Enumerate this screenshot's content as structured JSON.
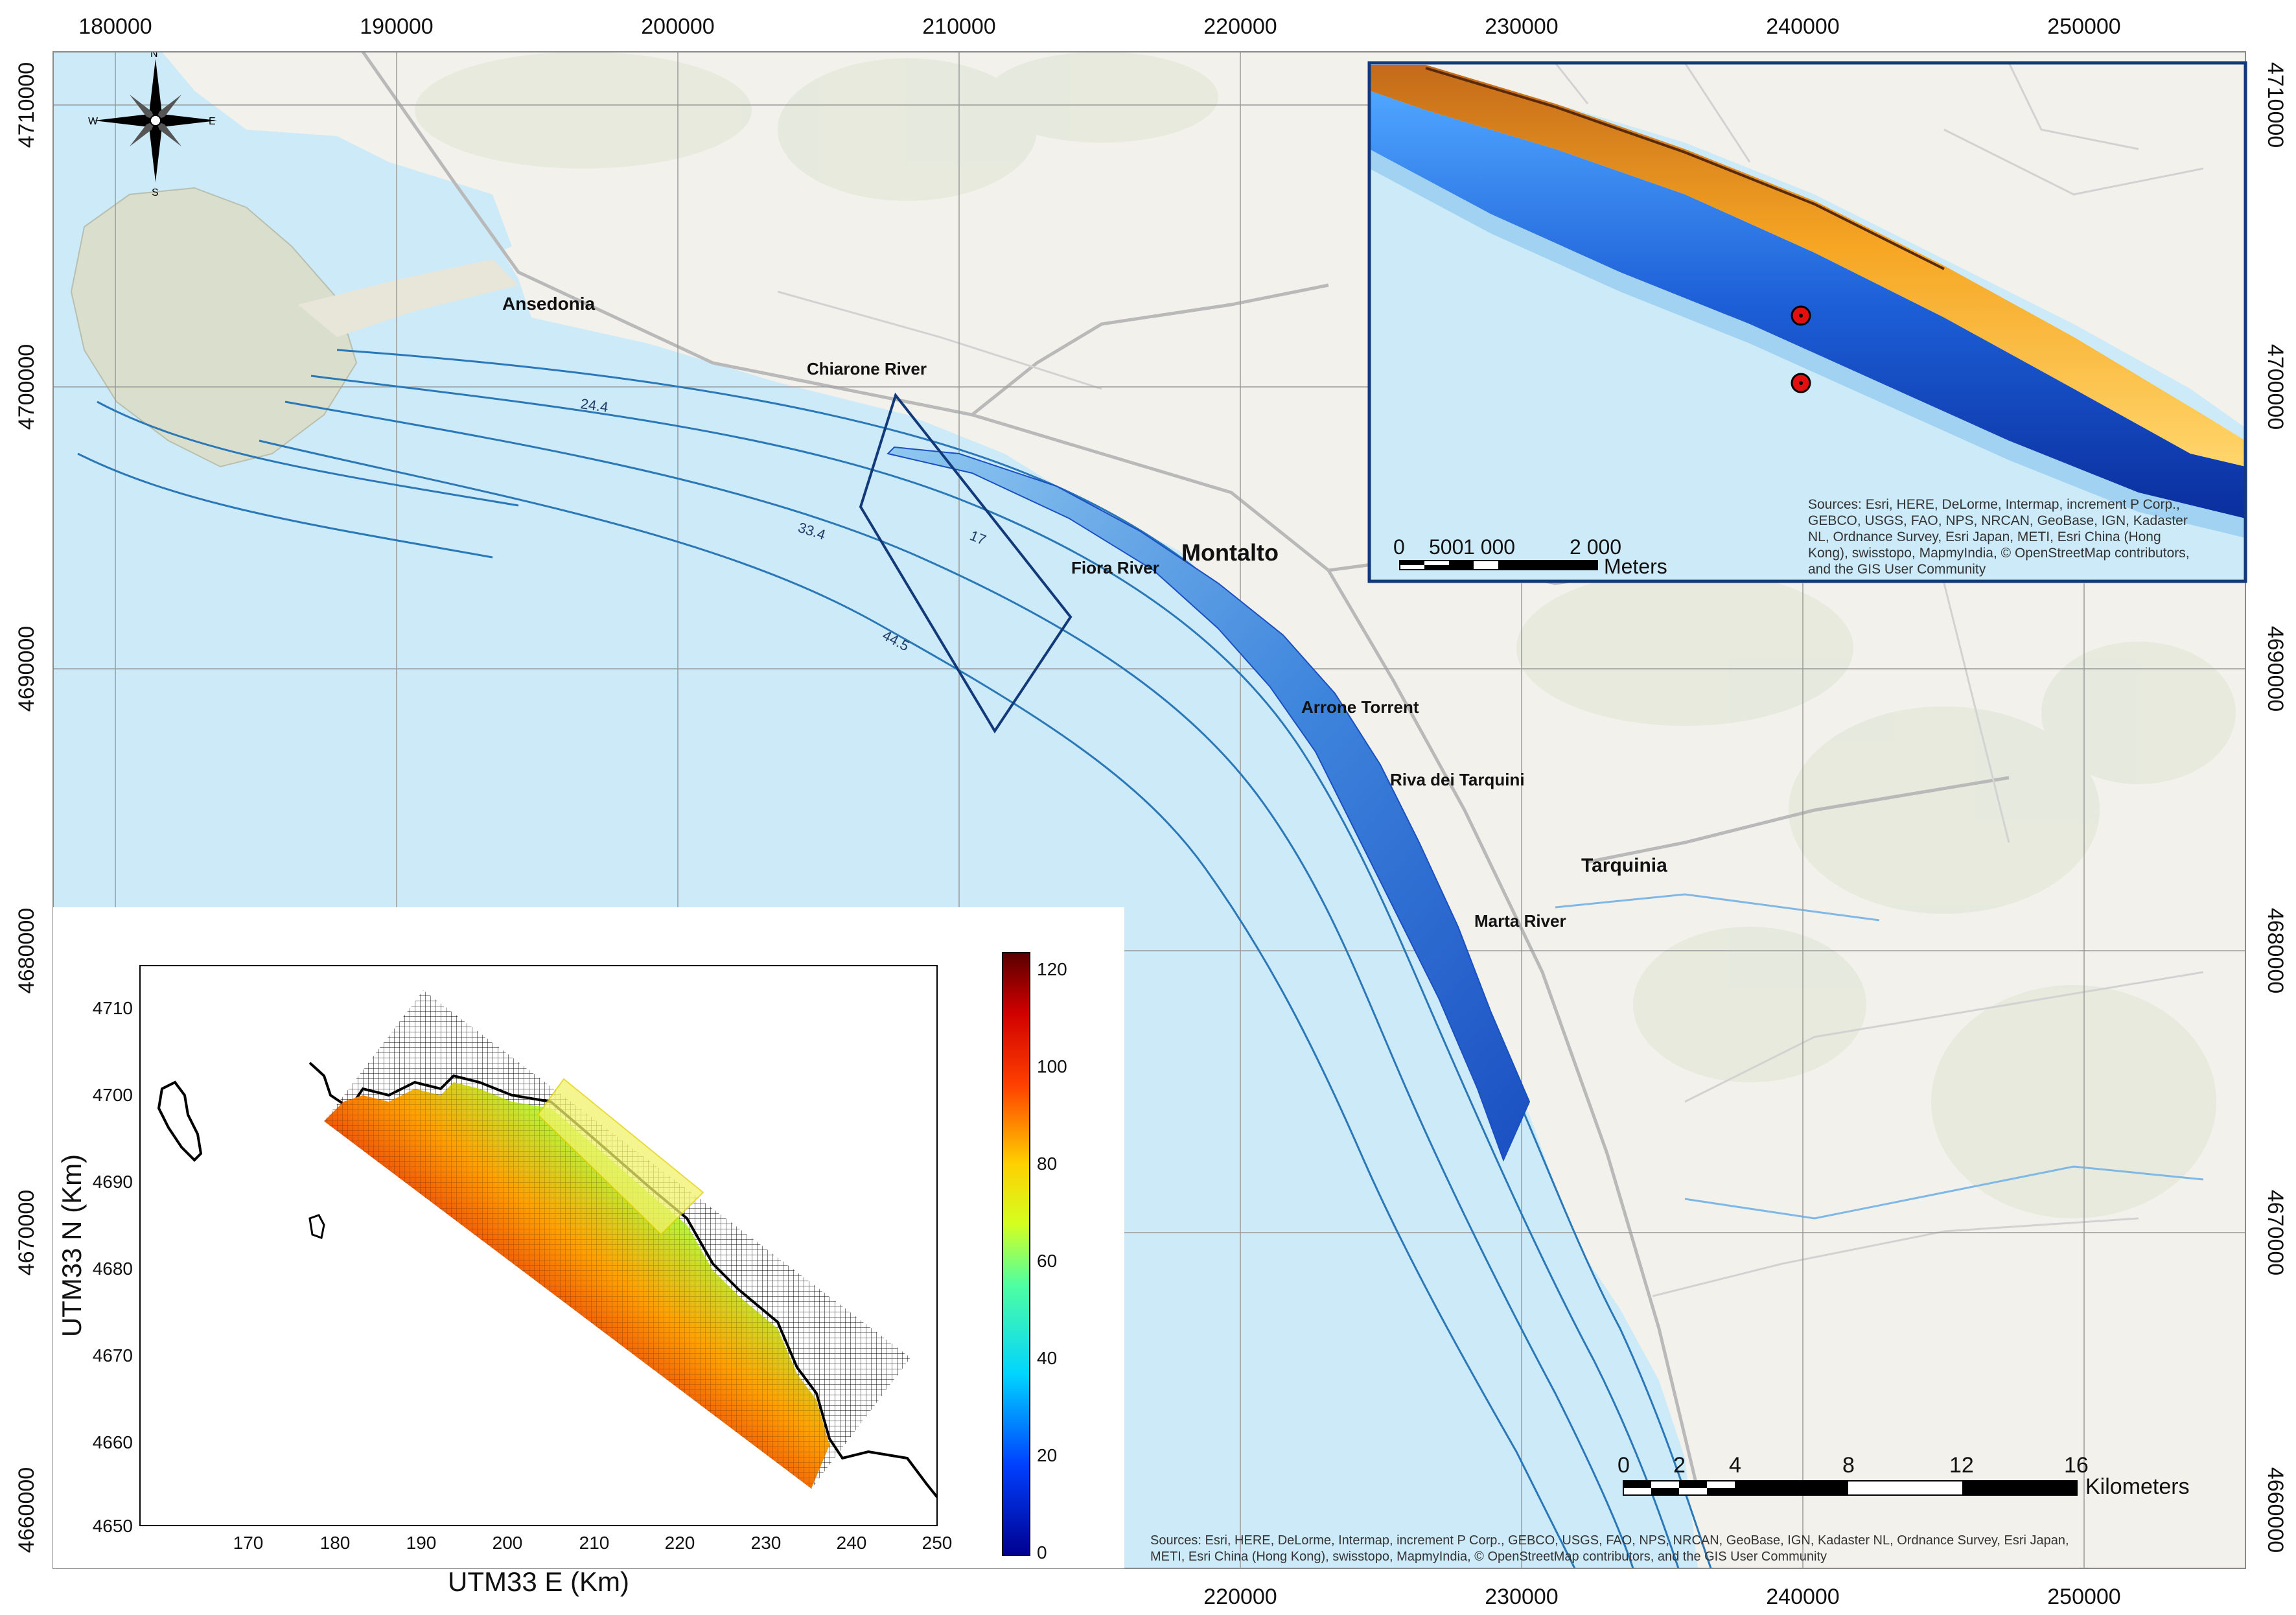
{
  "main_map": {
    "x_ticks": [
      "180000",
      "190000",
      "200000",
      "210000",
      "220000",
      "230000",
      "240000",
      "250000"
    ],
    "y_ticks": [
      "4710000",
      "4700000",
      "4690000",
      "4680000",
      "4670000",
      "4660000"
    ],
    "bottom_x_ticks": [
      "220000",
      "230000",
      "240000",
      "250000"
    ],
    "places": {
      "ansedonia": "Ansedonia",
      "chiarone": "Chiarone River",
      "montalto": "Montalto",
      "fiora": "Fiora River",
      "arrone": "Arrone Torrent",
      "riva": "Riva dei Tarquini",
      "tarquinia": "Tarquinia",
      "marta": "Marta River"
    },
    "contours": [
      "24.4",
      "33.4",
      "17",
      "44.5"
    ],
    "compass": {
      "n": "N",
      "s": "S",
      "e": "E",
      "w": "W"
    },
    "scale_bar": {
      "labels": [
        "0",
        "2",
        "4",
        "8",
        "12",
        "16"
      ],
      "unit": "Kilometers"
    },
    "attribution_line1": "Sources: Esri, HERE, DeLorme, Intermap, increment P Corp., GEBCO, USGS, FAO, NPS, NRCAN, GeoBase, IGN, Kadaster NL, Ordnance Survey, Esri Japan,",
    "attribution_line2": "METI, Esri China (Hong Kong), swisstopo, MapmyIndia, © OpenStreetMap contributors, and the GIS User Community"
  },
  "inset_top": {
    "scale_bar": {
      "labels": [
        "0",
        "500",
        "1 000",
        "2 000"
      ],
      "unit": "Meters"
    },
    "attribution": [
      "Sources: Esri, HERE, DeLorme, Intermap, increment P Corp.,",
      "GEBCO, USGS, FAO, NPS, NRCAN, GeoBase, IGN, Kadaster",
      "NL, Ordnance Survey, Esri Japan, METI, Esri China (Hong",
      "Kong), swisstopo, MapmyIndia, © OpenStreetMap contributors,",
      "and the GIS User Community"
    ]
  },
  "inset_plot": {
    "xlabel": "UTM33 E (Km)",
    "ylabel": "UTM33 N (Km)",
    "x_ticks": [
      "170",
      "180",
      "190",
      "200",
      "210",
      "220",
      "230",
      "240",
      "250"
    ],
    "y_ticks": [
      "4710",
      "4700",
      "4690",
      "4680",
      "4670",
      "4660",
      "4650"
    ],
    "colorbar_ticks": [
      "120",
      "100",
      "80",
      "60",
      "40",
      "20",
      "0"
    ]
  },
  "colors": {
    "sea": "#cdeaf8",
    "land": "#f2f1ec",
    "frame_blue": "#123a7a",
    "contour": "#2a78b8"
  }
}
